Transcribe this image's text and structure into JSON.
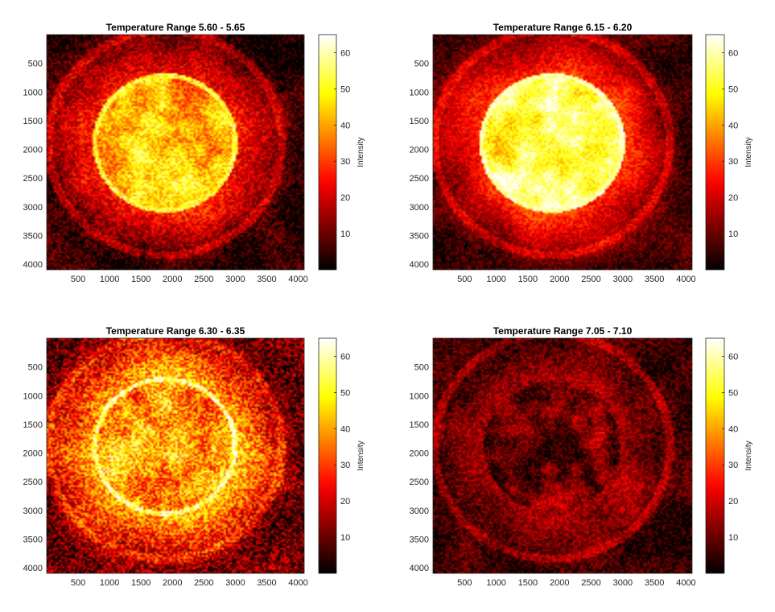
{
  "figure": {
    "colormap": "hot",
    "background": "#ffffff"
  },
  "chart_data": [
    {
      "type": "heatmap",
      "title": "Temperature Range 5.60 - 5.65",
      "xlim": [
        0,
        4096
      ],
      "ylim": [
        4096,
        0
      ],
      "xticks": [
        500,
        1000,
        1500,
        2000,
        2500,
        3000,
        3500,
        4000
      ],
      "xtick_labels": [
        "500",
        "1000",
        "1500",
        "2000",
        "2500",
        "3000",
        "3500",
        "4000"
      ],
      "yticks": [
        500,
        1000,
        1500,
        2000,
        2500,
        3000,
        3500,
        4000
      ],
      "ytick_labels": [
        "500",
        "1000",
        "1500",
        "2000",
        "2500",
        "3000",
        "3500",
        "4000"
      ],
      "colorbar": {
        "label": "Intensity",
        "range": [
          0,
          65
        ],
        "ticks": [
          10,
          20,
          30,
          40,
          50,
          60
        ],
        "tick_labels": [
          "10",
          "20",
          "30",
          "40",
          "50",
          "60"
        ]
      },
      "content": {
        "disk_value": 44,
        "limb_value": 52,
        "corona_value": 26,
        "outer_value": 4,
        "noise": 9,
        "dark_region_value": 30
      }
    },
    {
      "type": "heatmap",
      "title": "Temperature Range 6.15 - 6.20",
      "xlim": [
        0,
        4096
      ],
      "ylim": [
        4096,
        0
      ],
      "xticks": [
        500,
        1000,
        1500,
        2000,
        2500,
        3000,
        3500,
        4000
      ],
      "xtick_labels": [
        "500",
        "1000",
        "1500",
        "2000",
        "2500",
        "3000",
        "3500",
        "4000"
      ],
      "yticks": [
        500,
        1000,
        1500,
        2000,
        2500,
        3000,
        3500,
        4000
      ],
      "ytick_labels": [
        "500",
        "1000",
        "1500",
        "2000",
        "2500",
        "3000",
        "3500",
        "4000"
      ],
      "colorbar": {
        "label": "Intensity",
        "range": [
          0,
          65
        ],
        "ticks": [
          10,
          20,
          30,
          40,
          50,
          60
        ],
        "tick_labels": [
          "10",
          "20",
          "30",
          "40",
          "50",
          "60"
        ]
      },
      "content": {
        "disk_value": 55,
        "limb_value": 60,
        "corona_value": 30,
        "outer_value": 6,
        "noise": 7,
        "dark_region_value": 44
      }
    },
    {
      "type": "heatmap",
      "title": "Temperature Range 6.30 - 6.35",
      "xlim": [
        0,
        4096
      ],
      "ylim": [
        4096,
        0
      ],
      "xticks": [
        500,
        1000,
        1500,
        2000,
        2500,
        3000,
        3500,
        4000
      ],
      "xtick_labels": [
        "500",
        "1000",
        "1500",
        "2000",
        "2500",
        "3000",
        "3500",
        "4000"
      ],
      "yticks": [
        500,
        1000,
        1500,
        2000,
        2500,
        3000,
        3500,
        4000
      ],
      "ytick_labels": [
        "500",
        "1000",
        "1500",
        "2000",
        "2500",
        "3000",
        "3500",
        "4000"
      ],
      "colorbar": {
        "label": "Intensity",
        "range": [
          0,
          65
        ],
        "ticks": [
          10,
          20,
          30,
          40,
          50,
          60
        ],
        "tick_labels": [
          "10",
          "20",
          "30",
          "40",
          "50",
          "60"
        ]
      },
      "content": {
        "disk_value": 40,
        "limb_value": 58,
        "corona_value": 42,
        "outer_value": 10,
        "noise": 14,
        "dark_region_value": 28
      }
    },
    {
      "type": "heatmap",
      "title": "Temperature Range 7.05 - 7.10",
      "xlim": [
        0,
        4096
      ],
      "ylim": [
        4096,
        0
      ],
      "xticks": [
        500,
        1000,
        1500,
        2000,
        2500,
        3000,
        3500,
        4000
      ],
      "xtick_labels": [
        "500",
        "1000",
        "1500",
        "2000",
        "2500",
        "3000",
        "3500",
        "4000"
      ],
      "yticks": [
        500,
        1000,
        1500,
        2000,
        2500,
        3000,
        3500,
        4000
      ],
      "ytick_labels": [
        "500",
        "1000",
        "1500",
        "2000",
        "2500",
        "3000",
        "3500",
        "4000"
      ],
      "colorbar": {
        "label": "Intensity",
        "range": [
          0,
          65
        ],
        "ticks": [
          10,
          20,
          30,
          40,
          50,
          60
        ],
        "tick_labels": [
          "10",
          "20",
          "30",
          "40",
          "50",
          "60"
        ]
      },
      "content": {
        "disk_value": 10,
        "limb_value": 14,
        "corona_value": 16,
        "outer_value": 5,
        "noise": 8,
        "dark_region_value": 9
      }
    }
  ]
}
